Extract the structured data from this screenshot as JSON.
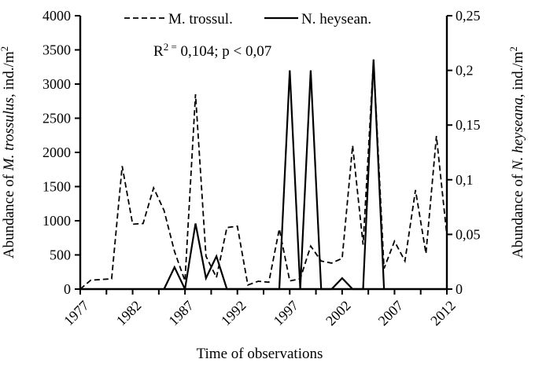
{
  "chart_data": {
    "type": "line",
    "title": "",
    "xlabel": "Time of observations",
    "annotation_parts": {
      "base": "R",
      "sup": "2 =",
      "rest": " 0,104; p < 0,07"
    },
    "x_axis": {
      "title": "Time of observations",
      "tick_labels": [
        "1977",
        "1982",
        "1987",
        "1992",
        "1997",
        "2002",
        "2007",
        "2012"
      ],
      "tick_years": [
        1977,
        1982,
        1987,
        1992,
        1997,
        2002,
        2007,
        2012
      ],
      "minor_tick_step_years": 2.5,
      "xlim": [
        1977,
        2012
      ]
    },
    "y_axis_left": {
      "title_parts": {
        "prefix": "Abundance of ",
        "species": "M. trossulus",
        "suffix": ", ind./m",
        "sup": "2"
      },
      "tick_labels": [
        "0",
        "500",
        "1000",
        "1500",
        "2000",
        "2500",
        "3000",
        "3500",
        "4000"
      ],
      "tick_values": [
        0,
        500,
        1000,
        1500,
        2000,
        2500,
        3000,
        3500,
        4000
      ],
      "lim": [
        0,
        4000
      ]
    },
    "y_axis_right": {
      "title_parts": {
        "prefix": "Abundance of ",
        "species": "N. heyseana",
        "suffix": ", ind./m",
        "sup": "2"
      },
      "tick_labels": [
        "0",
        "0,05",
        "0,1",
        "0,15",
        "0,2",
        "0,25"
      ],
      "tick_values": [
        0,
        0.05,
        0.1,
        0.15,
        0.2,
        0.25
      ],
      "lim": [
        0,
        0.25
      ]
    },
    "legend_position": "top",
    "grid": false,
    "line_color": "#000000",
    "series": [
      {
        "name": "M. trossul.",
        "style": "dashed",
        "axis": "left",
        "years": [
          1977,
          1978,
          1979,
          1980,
          1981,
          1982,
          1983,
          1984,
          1985,
          1986,
          1987,
          1988,
          1989,
          1990,
          1991,
          1992,
          1993,
          1994,
          1995,
          1996,
          1997,
          1998,
          1999,
          2000,
          2001,
          2002,
          2003,
          2004,
          2005,
          2006,
          2007,
          2008,
          2009,
          2010,
          2011,
          2012
        ],
        "values": [
          0,
          130,
          140,
          150,
          1800,
          950,
          960,
          1480,
          1150,
          550,
          120,
          2850,
          480,
          170,
          900,
          920,
          60,
          115,
          100,
          880,
          120,
          150,
          630,
          410,
          380,
          450,
          2100,
          650,
          3360,
          300,
          700,
          410,
          1450,
          520,
          2240,
          780
        ]
      },
      {
        "name": "N. heysean.",
        "style": "solid",
        "axis": "right",
        "years": [
          1985,
          1986,
          1987,
          1988,
          1989,
          1990,
          1991,
          1992,
          1993,
          1994,
          1995,
          1996,
          1997,
          1998,
          1999,
          2000,
          2001,
          2002,
          2003,
          2004,
          2005,
          2006
        ],
        "values": [
          0,
          0.02,
          0,
          0.06,
          0.01,
          0.03,
          0,
          0,
          0,
          0,
          0,
          0,
          0.2,
          0,
          0.2,
          0,
          0,
          0.01,
          0,
          0,
          0.21,
          0
        ]
      }
    ]
  }
}
